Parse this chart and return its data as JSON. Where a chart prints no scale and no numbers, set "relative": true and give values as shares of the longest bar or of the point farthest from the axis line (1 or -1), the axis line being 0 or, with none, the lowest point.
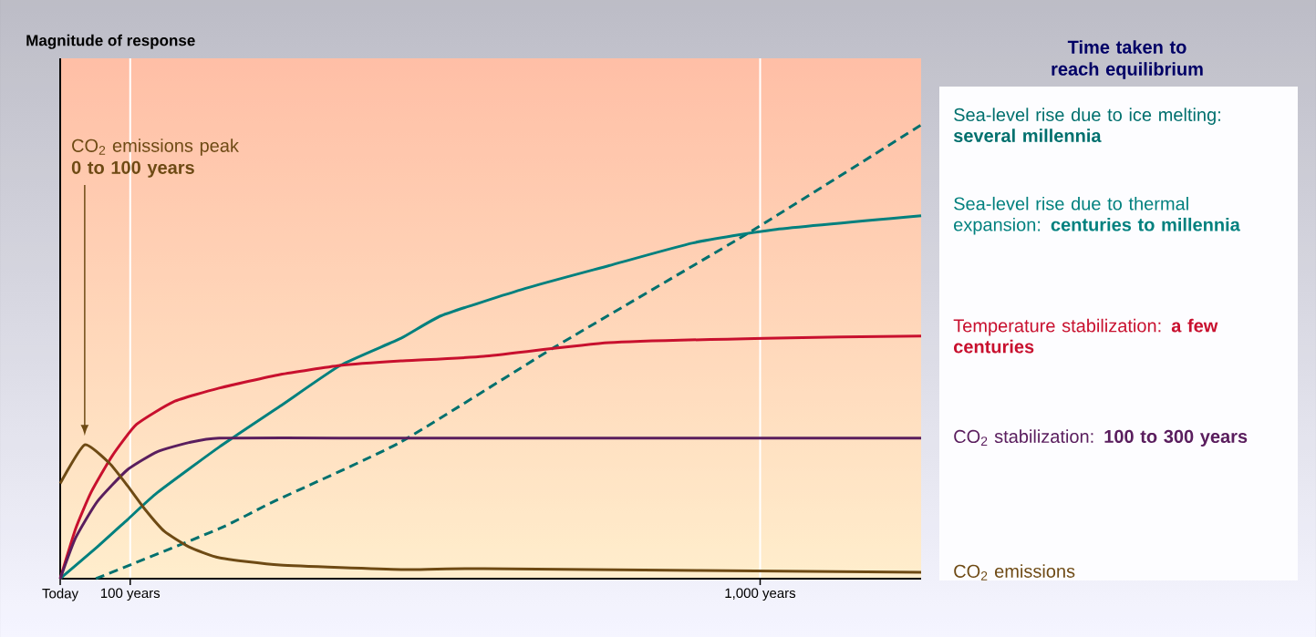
{
  "chart_data": {
    "type": "line",
    "relative": true,
    "ylabel": "Magnitude of response",
    "legend_title": "Time taken to reach equilibrium",
    "legend": "right",
    "grid": "x",
    "xlim": [
      0,
      1230
    ],
    "xticks": [
      {
        "value": 0,
        "label": "Today"
      },
      {
        "value": 100,
        "label": "100 years"
      },
      {
        "value": 1000,
        "label": "1,000 years"
      }
    ],
    "annotations": [
      "CO$_{2}$ emissions peak **0 to 100 years**"
    ],
    "series": [
      {
        "name": "Sea-level rise due to ice melting: **several millennia**",
        "color": "#00706e",
        "line_style": "dashed",
        "x": [
          51,
          227,
          305,
          485,
          706,
          981,
          1230
        ],
        "values": [
          0,
          0.11,
          0.17,
          0.3,
          0.51,
          0.76,
          1
        ]
      },
      {
        "name": "Sea-level rise due to thermal expansion: **centuries to millennia**",
        "color": "#00807e",
        "line_style": "solid",
        "x": [
          0,
          53,
          96,
          139,
          227,
          314,
          400,
          487,
          545,
          665,
          784,
          904,
          1023,
          1230
        ],
        "values": [
          0,
          0.07,
          0.13,
          0.19,
          0.29,
          0.38,
          0.47,
          0.53,
          0.58,
          0.64,
          0.69,
          0.74,
          0.77,
          0.8
        ]
      },
      {
        "name": "Temperature stabilization: **a few centuries**",
        "color": "#c8102e",
        "line_style": "solid",
        "x": [
          0,
          22,
          44,
          74,
          109,
          162,
          227,
          314,
          400,
          487,
          605,
          784,
          1006,
          1230
        ],
        "values": [
          0,
          0.11,
          0.19,
          0.27,
          0.34,
          0.39,
          0.42,
          0.45,
          0.47,
          0.48,
          0.49,
          0.52,
          0.53,
          0.535
        ]
      },
      {
        "name": "CO$_{2}$ stabilization: **100 to 300 years**",
        "color": "#5a1e5e",
        "line_style": "solid",
        "x": [
          0,
          22,
          53,
          96,
          139,
          184,
          227,
          400,
          700,
          1000,
          1230
        ],
        "values": [
          0,
          0.09,
          0.17,
          0.24,
          0.28,
          0.3,
          0.31,
          0.31,
          0.31,
          0.31,
          0.31
        ]
      },
      {
        "name": "CO$_{2}$ emissions",
        "color": "#6e4a14",
        "line_style": "solid",
        "x": [
          0,
          35,
          70,
          96,
          122,
          149,
          184,
          227,
          314,
          487,
          605,
          1230
        ],
        "values": [
          0.21,
          0.295,
          0.255,
          0.205,
          0.151,
          0.104,
          0.07,
          0.046,
          0.03,
          0.02,
          0.022,
          0.014
        ]
      }
    ]
  }
}
